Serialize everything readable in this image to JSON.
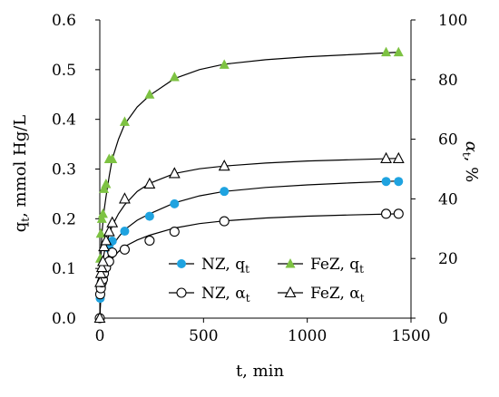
{
  "chart_data": {
    "type": "scatter",
    "xlabel": "t, min",
    "ylabel_left": "q",
    "ylabel_left_sub": "t",
    "ylabel_left_rest": ", mmol Hg/L",
    "ylabel_right": "α",
    "ylabel_right_sub": "t",
    "ylabel_right_rest": ", %",
    "xlim": [
      0,
      1500
    ],
    "ylim_left": [
      0,
      0.6
    ],
    "ylim_right": [
      0,
      100
    ],
    "x_ticks": [
      "0",
      "500",
      "1000",
      "1500"
    ],
    "y_left_ticks": [
      "0.0",
      "0.1",
      "0.2",
      "0.3",
      "0.4",
      "0.5",
      "0.6"
    ],
    "y_right_ticks": [
      "0",
      "20",
      "40",
      "60",
      "80",
      "100"
    ],
    "grid": false,
    "legend_position": "lower-right",
    "series": [
      {
        "name": "NZ, q",
        "name_sub": "t",
        "axis": "left",
        "marker": "filled-circle",
        "color": "#1fa3e0",
        "x": [
          0,
          2,
          5,
          10,
          15,
          20,
          30,
          45,
          60,
          120,
          240,
          360,
          600,
          1380,
          1440
        ],
        "y": [
          0.0,
          0.04,
          0.06,
          0.075,
          0.09,
          0.1,
          0.11,
          0.14,
          0.155,
          0.175,
          0.205,
          0.23,
          0.255,
          0.275,
          0.275
        ],
        "fit_x": [
          0,
          5,
          10,
          20,
          30,
          45,
          60,
          90,
          120,
          180,
          240,
          360,
          480,
          600,
          800,
          1000,
          1200,
          1440
        ],
        "fit_y": [
          0.0,
          0.045,
          0.07,
          0.095,
          0.112,
          0.13,
          0.145,
          0.163,
          0.178,
          0.197,
          0.21,
          0.232,
          0.246,
          0.255,
          0.263,
          0.268,
          0.272,
          0.276
        ]
      },
      {
        "name": "FeZ, q",
        "name_sub": "t",
        "axis": "left",
        "marker": "filled-triangle",
        "color": "#7dc242",
        "x": [
          0,
          2,
          5,
          10,
          15,
          20,
          30,
          45,
          60,
          120,
          240,
          360,
          600,
          1380,
          1440
        ],
        "y": [
          0.0,
          0.12,
          0.17,
          0.2,
          0.21,
          0.26,
          0.27,
          0.32,
          0.32,
          0.395,
          0.45,
          0.485,
          0.51,
          0.535,
          0.535
        ],
        "fit_x": [
          0,
          5,
          10,
          20,
          30,
          45,
          60,
          90,
          120,
          180,
          240,
          360,
          480,
          600,
          800,
          1000,
          1200,
          1440
        ],
        "fit_y": [
          0.0,
          0.12,
          0.17,
          0.215,
          0.245,
          0.285,
          0.32,
          0.36,
          0.39,
          0.425,
          0.448,
          0.482,
          0.5,
          0.511,
          0.52,
          0.526,
          0.53,
          0.535
        ]
      },
      {
        "name": "NZ, α",
        "name_sub": "t",
        "axis": "right",
        "marker": "open-circle",
        "color": "#000000",
        "x": [
          0,
          2,
          5,
          10,
          15,
          20,
          30,
          45,
          60,
          120,
          240,
          360,
          600,
          1380,
          1440
        ],
        "y": [
          0,
          8,
          10,
          12,
          13,
          15,
          17,
          19,
          22,
          23,
          26,
          29,
          32.5,
          35,
          35
        ],
        "fit_x": [
          0,
          5,
          10,
          20,
          30,
          45,
          60,
          90,
          120,
          180,
          240,
          360,
          480,
          600,
          800,
          1000,
          1200,
          1440
        ],
        "fit_y": [
          0,
          8,
          11,
          14,
          16,
          18.2,
          20,
          22.3,
          24,
          26.2,
          27.8,
          30.2,
          31.7,
          32.6,
          33.6,
          34.2,
          34.6,
          35
        ]
      },
      {
        "name": "FeZ, α",
        "name_sub": "t",
        "axis": "right",
        "marker": "open-triangle",
        "color": "#000000",
        "x": [
          0,
          2,
          5,
          10,
          15,
          20,
          30,
          45,
          60,
          120,
          240,
          360,
          600,
          1380,
          1440
        ],
        "y": [
          0,
          12,
          15,
          17,
          19,
          24,
          26,
          29,
          32,
          40,
          45,
          48.5,
          51,
          53.5,
          53.5
        ],
        "fit_x": [
          0,
          5,
          10,
          20,
          30,
          45,
          60,
          90,
          120,
          180,
          240,
          360,
          480,
          600,
          800,
          1000,
          1200,
          1440
        ],
        "fit_y": [
          0,
          13,
          17,
          21.5,
          24.5,
          28,
          31,
          35,
          38,
          42.5,
          45.2,
          48.5,
          50.1,
          51,
          52,
          52.7,
          53.1,
          53.6
        ]
      }
    ]
  }
}
